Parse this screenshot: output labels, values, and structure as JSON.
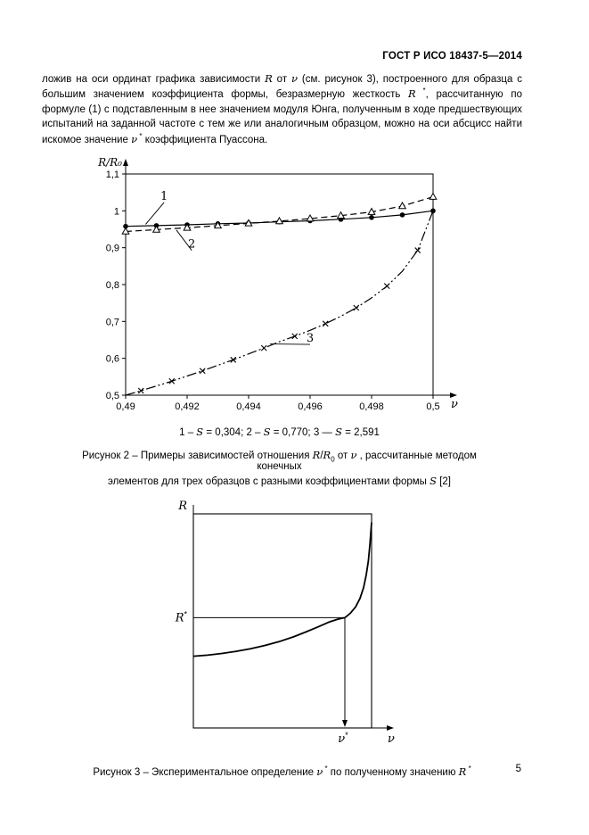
{
  "page": {
    "header": "ГОСТ Р ИСО 18437-5—2014",
    "number": "5"
  },
  "paragraph": [
    {
      "t": "ложив на оси ординат графика зависимости "
    },
    {
      "t": "R",
      "i": true
    },
    {
      "t": " от "
    },
    {
      "t": "ν",
      "i": true
    },
    {
      "t": " (см. рисунок 3), построенного для образца с большим значением коэффициента формы, безразмерную жесткость "
    },
    {
      "t": "R",
      "i": true
    },
    {
      "t": " *",
      "sup": true
    },
    {
      "t": ", рассчитанную по формуле (1) с подставленным в нее значением модуля Юнга, полученным в ходе предшествующих испытаний на заданной частоте с тем же или аналогичным образцом, можно на оси абсцисс найти искомое значение "
    },
    {
      "t": "ν",
      "i": true
    },
    {
      "t": " *",
      "sup": true
    },
    {
      "t": " коэффициента Пуассона."
    }
  ],
  "figure2": {
    "legend": [
      {
        "t": "1 – "
      },
      {
        "t": "S",
        "i": true
      },
      {
        "t": " = 0,304; 2 – "
      },
      {
        "t": "S",
        "i": true
      },
      {
        "t": " = 0,770; 3 — "
      },
      {
        "t": "S",
        "i": true
      },
      {
        "t": " = 2,591"
      }
    ],
    "caption_line1": [
      {
        "t": "Рисунок 2 – Примеры зависимостей отношения "
      },
      {
        "t": "R",
        "i": true
      },
      {
        "t": "/"
      },
      {
        "t": "R",
        "i": true
      },
      {
        "t": "0",
        "sub": true
      },
      {
        "t": " от "
      },
      {
        "t": "ν",
        "i": true
      },
      {
        "t": " , рассчитанные методом конечных"
      }
    ],
    "caption_line2": [
      {
        "t": "элементов для трех образцов с разными коэффициентами формы "
      },
      {
        "t": "S",
        "i": true
      },
      {
        "t": " [2]"
      }
    ]
  },
  "figure3": {
    "caption": [
      {
        "t": "Рисунок 3 – Экспериментальное определение "
      },
      {
        "t": "ν",
        "i": true
      },
      {
        "t": " *",
        "sup": true
      },
      {
        "t": " по полученному значению "
      },
      {
        "t": "R",
        "i": true
      },
      {
        "t": " *",
        "sup": true
      }
    ]
  },
  "chart_data": [
    {
      "type": "line",
      "title": "",
      "xlabel": "ν",
      "ylabel": "R/R₀",
      "xlim": [
        0.49,
        0.5
      ],
      "ylim": [
        0.5,
        1.1
      ],
      "grid": false,
      "x_ticks": [
        {
          "v": 0.49,
          "label": "0,49"
        },
        {
          "v": 0.492,
          "label": "0,492"
        },
        {
          "v": 0.494,
          "label": "0,494"
        },
        {
          "v": 0.496,
          "label": "0,496"
        },
        {
          "v": 0.498,
          "label": "0,498"
        },
        {
          "v": 0.5,
          "label": "0,5"
        }
      ],
      "y_ticks": [
        {
          "v": 0.5,
          "label": "0,5"
        },
        {
          "v": 0.6,
          "label": "0,6"
        },
        {
          "v": 0.7,
          "label": "0,7"
        },
        {
          "v": 0.8,
          "label": "0,8"
        },
        {
          "v": 0.9,
          "label": "0,9"
        },
        {
          "v": 1.0,
          "label": "1"
        },
        {
          "v": 1.1,
          "label": "1,1"
        }
      ],
      "series": [
        {
          "name": "1: S = 0,304",
          "line": "solid",
          "marker": "dot",
          "x": [
            0.49,
            0.491,
            0.492,
            0.493,
            0.494,
            0.495,
            0.496,
            0.497,
            0.498,
            0.499,
            0.5
          ],
          "y": [
            0.958,
            0.96,
            0.962,
            0.965,
            0.967,
            0.97,
            0.973,
            0.977,
            0.982,
            0.989,
            1.0
          ]
        },
        {
          "name": "2: S = 0,770",
          "line": "dashed",
          "marker": "triangle",
          "x": [
            0.49,
            0.491,
            0.492,
            0.493,
            0.494,
            0.495,
            0.496,
            0.497,
            0.498,
            0.499,
            0.5
          ],
          "y": [
            0.944,
            0.949,
            0.954,
            0.96,
            0.966,
            0.972,
            0.979,
            0.987,
            0.997,
            1.013,
            1.038
          ]
        },
        {
          "name": "3: S = 2,591",
          "line": "dash-dot-dot",
          "marker": "x",
          "marker_every": 2,
          "x": [
            0.49,
            0.4905,
            0.491,
            0.4915,
            0.492,
            0.4925,
            0.493,
            0.4935,
            0.494,
            0.4945,
            0.495,
            0.4955,
            0.496,
            0.4965,
            0.497,
            0.4975,
            0.498,
            0.4985,
            0.499,
            0.4995,
            0.5
          ],
          "y": [
            0.5,
            0.512,
            0.525,
            0.538,
            0.552,
            0.566,
            0.581,
            0.596,
            0.612,
            0.628,
            0.645,
            0.66,
            0.676,
            0.694,
            0.714,
            0.737,
            0.764,
            0.796,
            0.836,
            0.893,
            1.0
          ]
        }
      ],
      "annotations": [
        {
          "text": "1",
          "x": 0.49125,
          "y": 1.03,
          "tx": 0.49065,
          "ty": 0.9635
        },
        {
          "text": "2",
          "x": 0.49215,
          "y": 0.9,
          "tx": 0.49165,
          "ty": 0.948
        },
        {
          "text": "3",
          "x": 0.496,
          "y": 0.645,
          "tx": 0.4947,
          "ty": 0.639
        }
      ]
    },
    {
      "type": "line",
      "schematic": true,
      "xlabel": "ν",
      "ylabel": "R",
      "rstar_label": "R",
      "nustar_label": "ν",
      "star": "*",
      "marker_lines": {
        "x_frac": 0.85,
        "y_frac": 0.515
      },
      "curve": {
        "x": [
          0,
          0.08,
          0.16,
          0.24,
          0.32,
          0.4,
          0.48,
          0.56,
          0.63,
          0.7,
          0.76,
          0.81,
          0.85,
          0.88,
          0.91,
          0.935,
          0.955,
          0.97,
          0.982,
          0.991,
          1.0
        ],
        "y": [
          0.335,
          0.34,
          0.348,
          0.358,
          0.37,
          0.385,
          0.403,
          0.425,
          0.448,
          0.472,
          0.494,
          0.508,
          0.515,
          0.535,
          0.565,
          0.605,
          0.655,
          0.715,
          0.78,
          0.86,
          0.96
        ]
      }
    }
  ]
}
